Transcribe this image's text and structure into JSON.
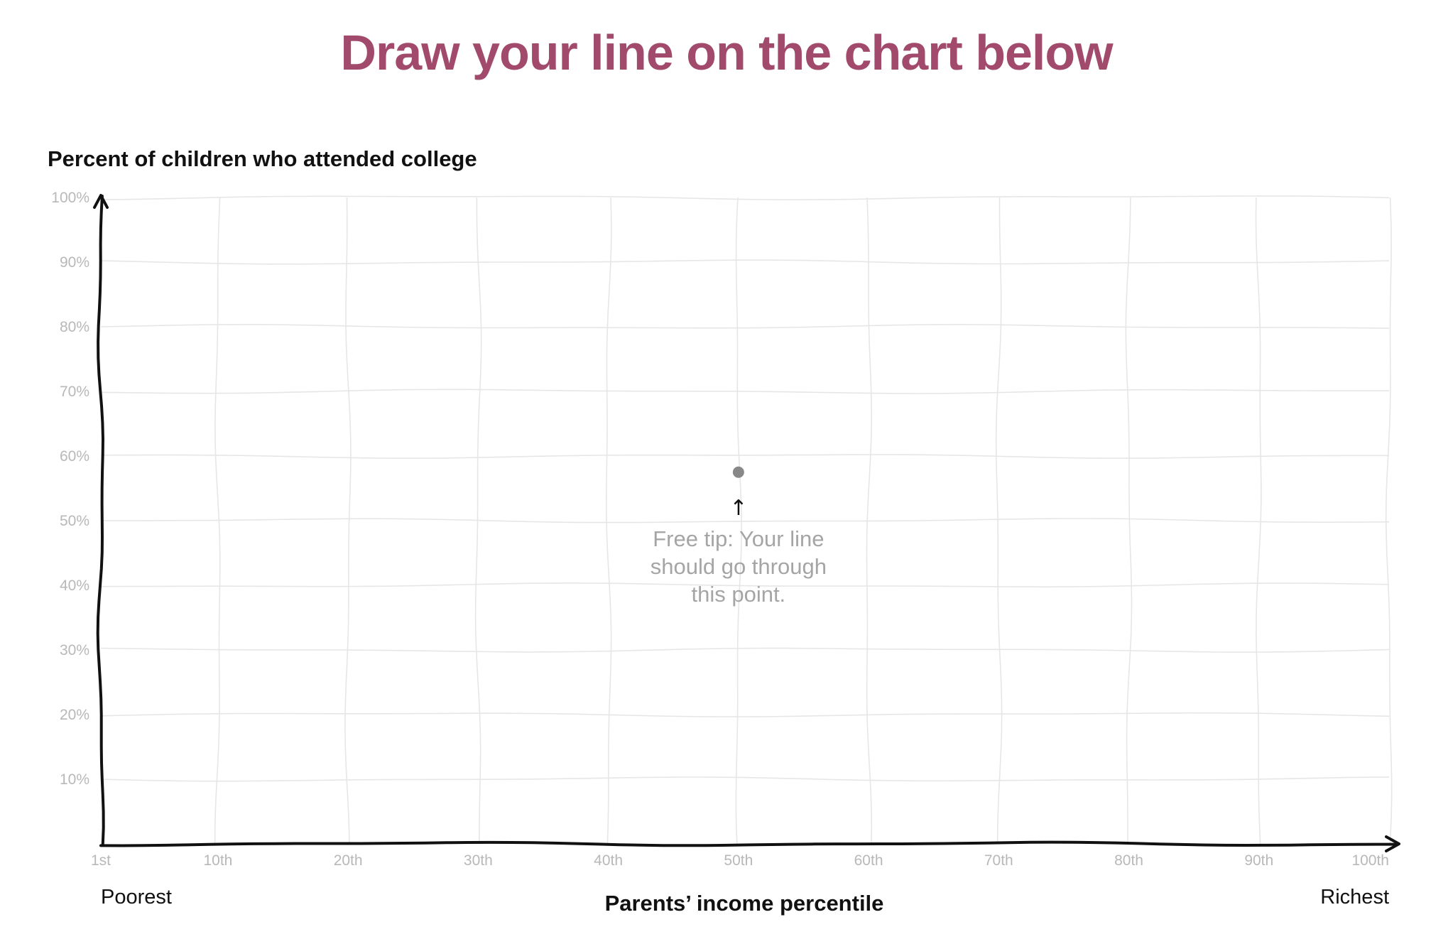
{
  "header": {
    "title": "Draw your line on the chart below"
  },
  "colors": {
    "title": "#a14a6b",
    "grid": "#e6e6e6",
    "tick": "#b8b8b8",
    "axis": "#111111",
    "point": "#888888",
    "tip": "#a5a5a5"
  },
  "chart_data": {
    "type": "line",
    "title": "",
    "ylabel": "Percent of children who attended college",
    "xlabel": "Parents’ income percentile",
    "xlim": [
      1,
      100
    ],
    "ylim": [
      0,
      100
    ],
    "grid": true,
    "x_ticks": [
      {
        "value": 1,
        "label": "1st"
      },
      {
        "value": 10,
        "label": "10th"
      },
      {
        "value": 20,
        "label": "20th"
      },
      {
        "value": 30,
        "label": "30th"
      },
      {
        "value": 40,
        "label": "40th"
      },
      {
        "value": 50,
        "label": "50th"
      },
      {
        "value": 60,
        "label": "60th"
      },
      {
        "value": 70,
        "label": "70th"
      },
      {
        "value": 80,
        "label": "80th"
      },
      {
        "value": 90,
        "label": "90th"
      },
      {
        "value": 100,
        "label": "100th"
      }
    ],
    "y_ticks": [
      {
        "value": 10,
        "label": "10%"
      },
      {
        "value": 20,
        "label": "20%"
      },
      {
        "value": 30,
        "label": "30%"
      },
      {
        "value": 40,
        "label": "40%"
      },
      {
        "value": 50,
        "label": "50%"
      },
      {
        "value": 60,
        "label": "60%"
      },
      {
        "value": 70,
        "label": "70%"
      },
      {
        "value": 80,
        "label": "80%"
      },
      {
        "value": 90,
        "label": "90%"
      },
      {
        "value": 100,
        "label": "100%"
      }
    ],
    "x_end_labels": {
      "left": "Poorest",
      "right": "Richest"
    },
    "points": [
      {
        "x": 50,
        "y": 57.5
      }
    ],
    "annotation": {
      "lines": [
        "Free tip: Your line",
        "should go through",
        "this point."
      ],
      "arrow": "↑"
    }
  }
}
